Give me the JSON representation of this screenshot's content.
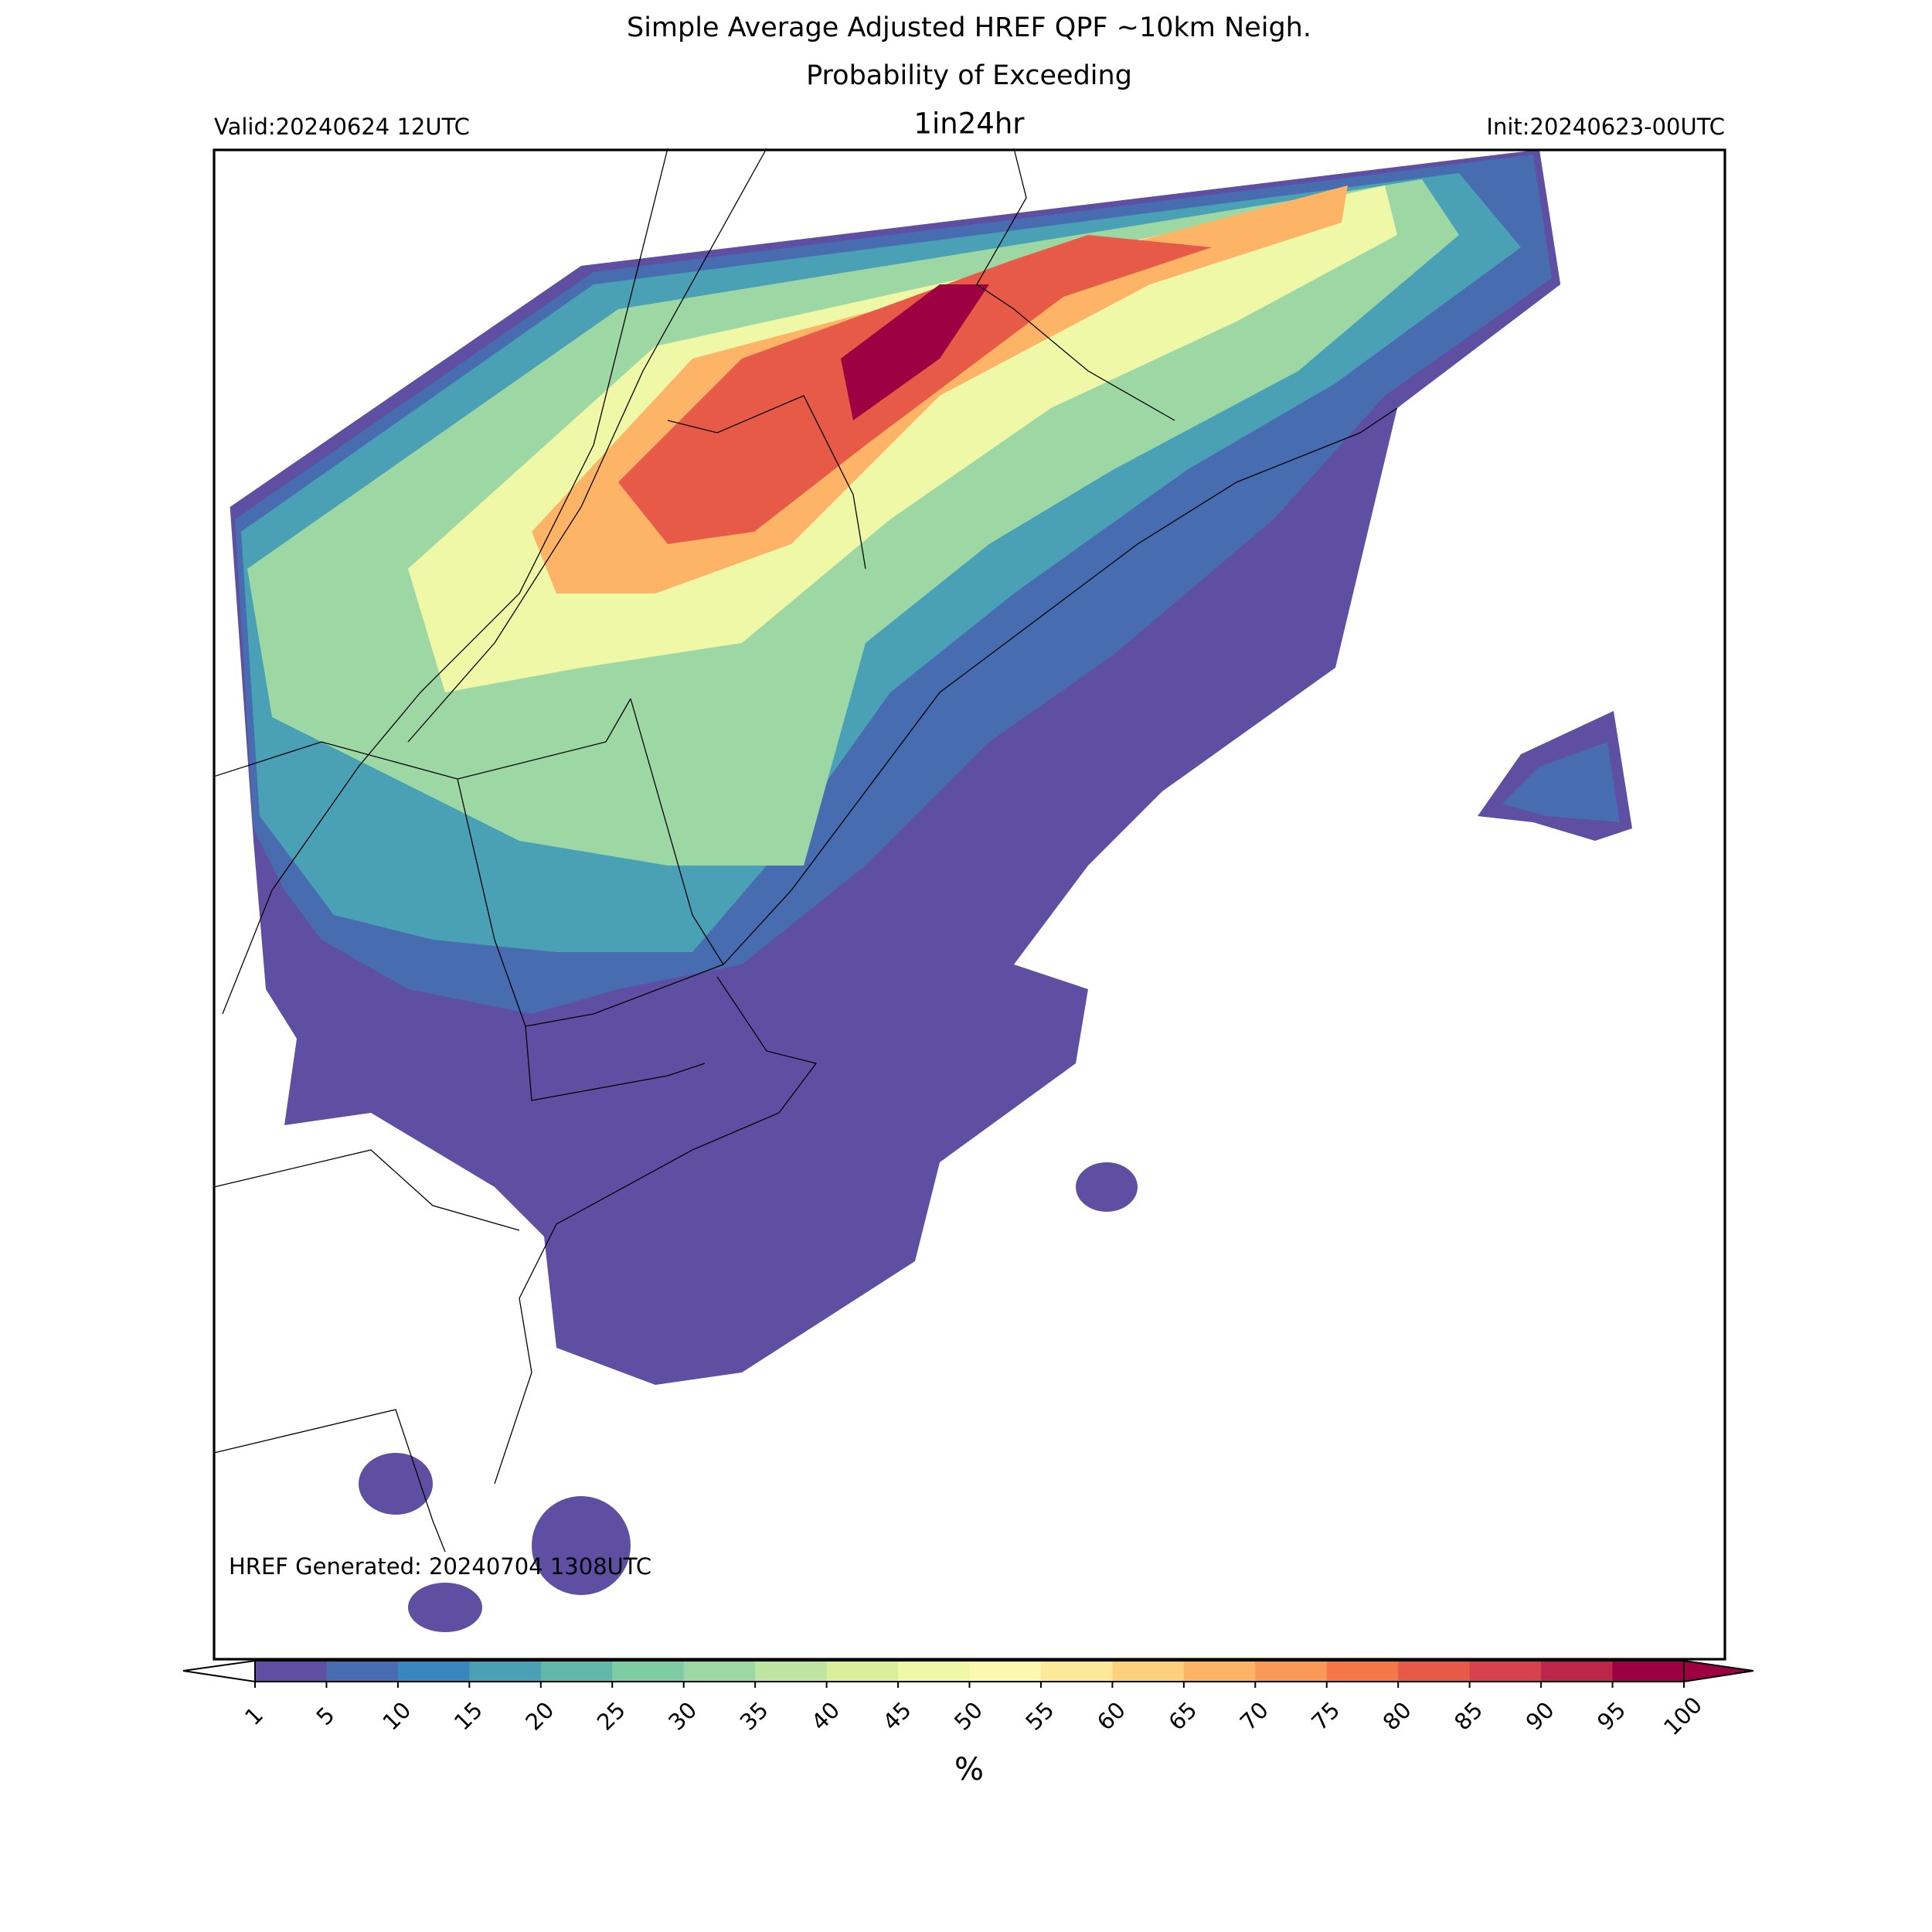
{
  "header": {
    "title_line1": "Simple Average Adjusted HREF QPF ~10km Neigh.",
    "title_line2": "Probability of Exceeding",
    "threshold": "1in24hr",
    "valid": "Valid:20240624 12UTC",
    "init": "Init:20240623-00UTC"
  },
  "footer": {
    "generated": "HREF Generated: 20240704 1308UTC"
  },
  "colorbar": {
    "label": "%",
    "ticks": [
      1,
      5,
      10,
      15,
      20,
      25,
      30,
      35,
      40,
      45,
      50,
      55,
      60,
      65,
      70,
      75,
      80,
      85,
      90,
      95,
      100
    ],
    "colors": [
      "#5e4fa2",
      "#486cb0",
      "#3987bc",
      "#4aa0b5",
      "#61b8a8",
      "#7ecba4",
      "#9dd7a4",
      "#bde4a0",
      "#d9ef9b",
      "#eef8a6",
      "#fbf8b0",
      "#fee89a",
      "#fed07e",
      "#fdb466",
      "#fa9857",
      "#f57747",
      "#e75a47",
      "#d7424d",
      "#be254b",
      "#9e0142"
    ]
  }
}
